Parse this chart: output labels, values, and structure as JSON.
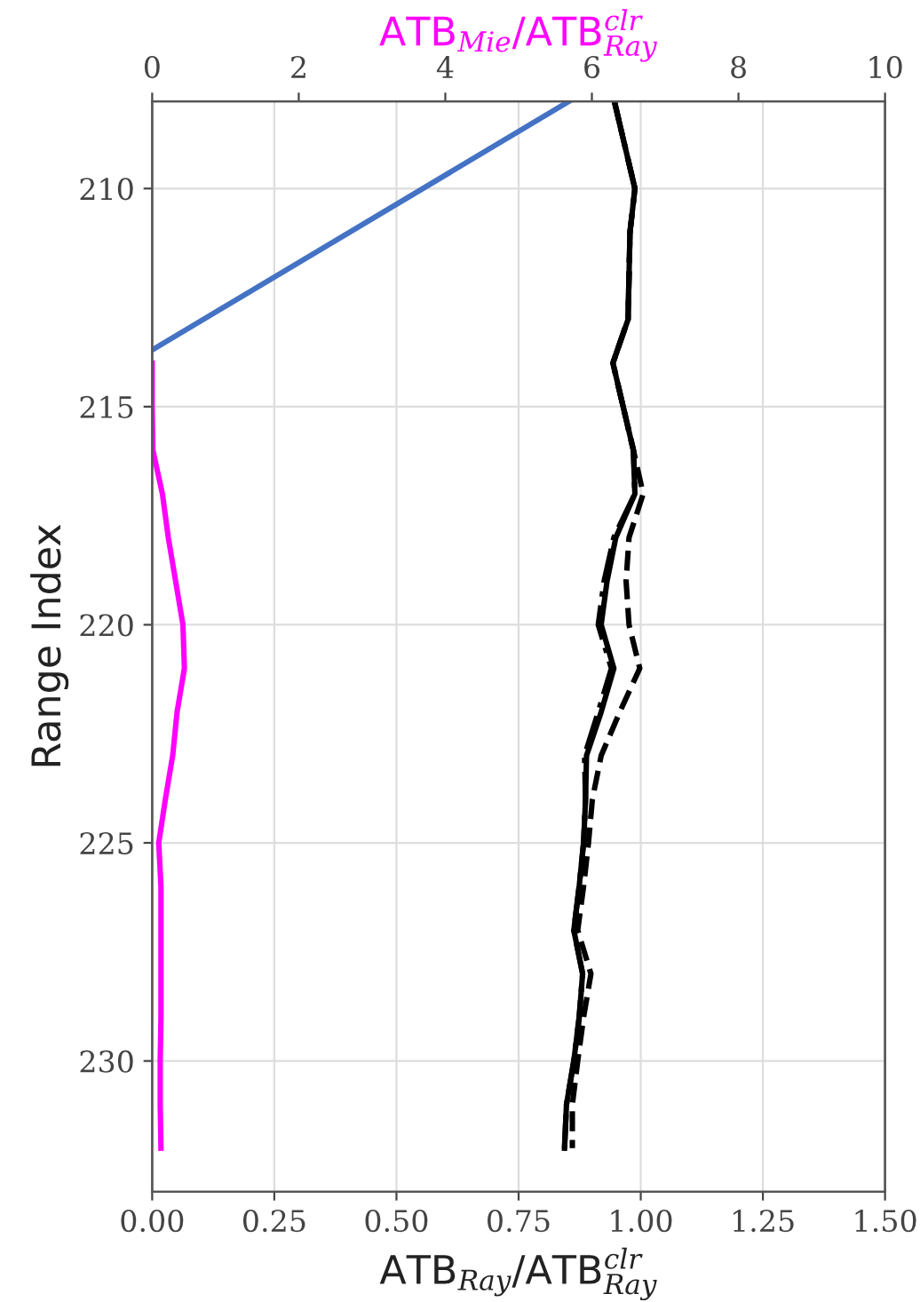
{
  "chart_data": {
    "type": "line",
    "xlabel": "ATB$_{Ray}$/ATB$^{clr}$$_{Ray}$",
    "x2label": "ATB$_{Mie}$/ATB$^{clr}$$_{Ray}$",
    "ylabel": "Range Index",
    "xlim": [
      0,
      1.5
    ],
    "xticks": [
      {
        "value": 0,
        "label": "0.00"
      },
      {
        "value": 0.25,
        "label": "0.25"
      },
      {
        "value": 0.5,
        "label": "0.50"
      },
      {
        "value": 0.75,
        "label": "0.75"
      },
      {
        "value": 1.0,
        "label": "1.00"
      },
      {
        "value": 1.25,
        "label": "1.25"
      },
      {
        "value": 1.5,
        "label": "1.50"
      }
    ],
    "x2lim": [
      0,
      10
    ],
    "x2ticks": [
      0,
      2,
      4,
      6,
      8,
      10
    ],
    "ylim": [
      233,
      208
    ],
    "yticks": [
      210,
      215,
      220,
      225,
      230
    ],
    "grid": true,
    "series": [
      {
        "color": "#000000",
        "line_style": "dashed",
        "x": [
          0.946,
          0.967,
          0.988,
          0.978,
          0.976,
          0.974,
          0.943,
          0.964,
          0.985,
          1.005,
          0.976,
          0.97,
          0.976,
          0.998,
          0.957,
          0.919,
          0.901,
          0.893,
          0.883,
          0.871,
          0.898,
          0.883,
          0.871,
          0.86,
          0.86
        ],
        "values": [
          208,
          209,
          210,
          211,
          212,
          213,
          214,
          215,
          216,
          217,
          218,
          219,
          220,
          221,
          222,
          223,
          224,
          225,
          226,
          227,
          228,
          229,
          230,
          231,
          232
        ]
      },
      {
        "color": "#000000",
        "line_style": "dashdot",
        "x": [
          0.946,
          0.967,
          0.988,
          0.978,
          0.976,
          0.974,
          0.943,
          0.964,
          0.985,
          0.988,
          0.945,
          0.925,
          0.913,
          0.94,
          0.913,
          0.885,
          0.887,
          0.883,
          0.874,
          0.863,
          0.881,
          0.874,
          0.863,
          0.848,
          0.844
        ],
        "values": [
          208,
          209,
          210,
          211,
          212,
          213,
          214,
          215,
          216,
          217,
          218,
          219,
          220,
          221,
          222,
          223,
          224,
          225,
          226,
          227,
          228,
          229,
          230,
          231,
          232
        ]
      },
      {
        "color": "#000000",
        "line_style": "solid",
        "x": [
          0.946,
          0.967,
          0.988,
          0.978,
          0.976,
          0.974,
          0.943,
          0.964,
          0.985,
          0.988,
          0.949,
          0.931,
          0.919,
          0.945,
          0.919,
          0.889,
          0.887,
          0.883,
          0.874,
          0.863,
          0.881,
          0.874,
          0.863,
          0.848,
          0.844
        ],
        "values": [
          208,
          209,
          210,
          211,
          212,
          213,
          214,
          215,
          216,
          217,
          218,
          219,
          220,
          221,
          222,
          223,
          224,
          225,
          226,
          227,
          228,
          229,
          230,
          231,
          232
        ]
      },
      {
        "color": "#ff00ff",
        "line_style": "solid",
        "axis": "x2",
        "x": [
          0,
          0,
          0.01,
          0.14,
          0.22,
          0.32,
          0.42,
          0.44,
          0.34,
          0.28,
          0.18,
          0.09,
          0.12,
          0.12,
          0.12,
          0.12,
          0.11,
          0.11,
          0.12
        ],
        "values": [
          214,
          215,
          216,
          217,
          218,
          219,
          220,
          221,
          222,
          223,
          224,
          225,
          226,
          227,
          228,
          229,
          230,
          231,
          232
        ]
      },
      {
        "color": "#4472c4",
        "line_style": "solid",
        "axis": "x2",
        "x": [
          0,
          5.69
        ],
        "values": [
          213.7,
          208
        ]
      }
    ]
  }
}
